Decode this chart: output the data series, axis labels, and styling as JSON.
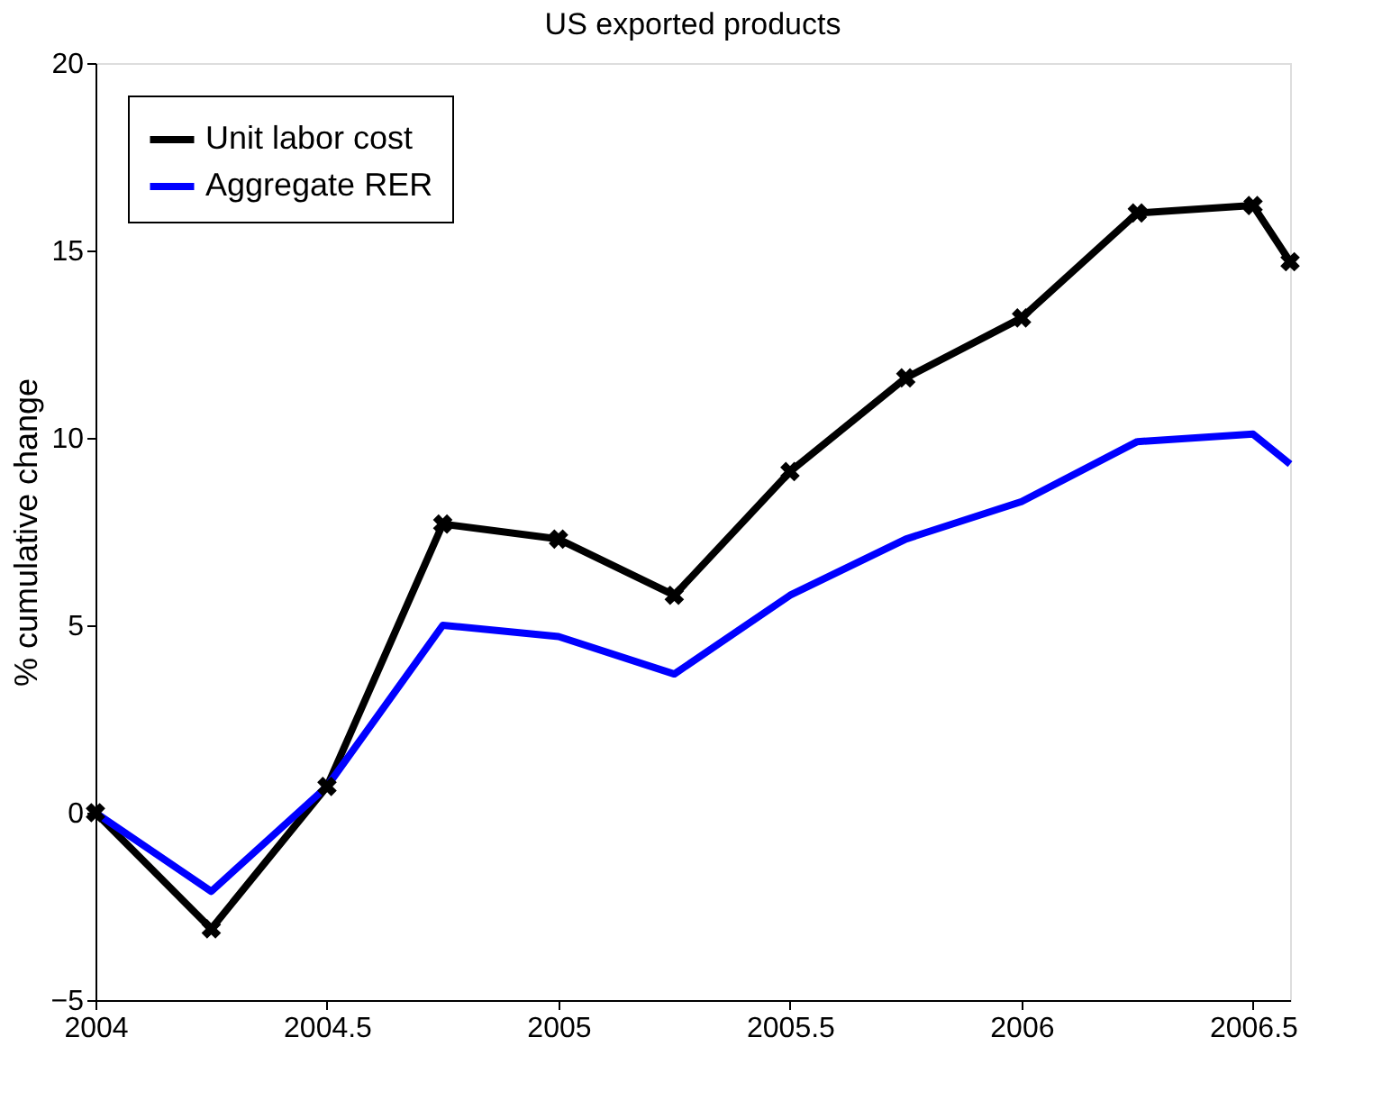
{
  "chart_data": {
    "type": "line",
    "title": "US exported products",
    "ylabel": "% cumulative change",
    "x": [
      2004,
      2004.25,
      2004.5,
      2004.75,
      2005,
      2005.25,
      2005.5,
      2005.75,
      2006,
      2006.25,
      2006.5,
      2006.58
    ],
    "series": [
      {
        "name": "Unit labor cost",
        "color": "#000000",
        "marker": "cross",
        "values": [
          0,
          -3.1,
          0.7,
          7.7,
          7.3,
          5.8,
          9.1,
          11.6,
          13.2,
          16.0,
          16.2,
          14.7
        ]
      },
      {
        "name": "Aggregate RER",
        "color": "#0000ff",
        "marker": "none",
        "values": [
          0,
          -2.1,
          0.7,
          5.0,
          4.7,
          3.7,
          5.8,
          7.3,
          8.3,
          9.9,
          10.1,
          9.3
        ]
      }
    ],
    "xlim": [
      2004,
      2006.58
    ],
    "xticks": [
      2004,
      2004.5,
      2005,
      2005.5,
      2006,
      2006.5
    ],
    "ylim": [
      -5,
      20
    ],
    "yticks": [
      -5,
      0,
      5,
      10,
      15,
      20
    ],
    "grid": false,
    "legend": "top left",
    "line_style": "solid"
  }
}
